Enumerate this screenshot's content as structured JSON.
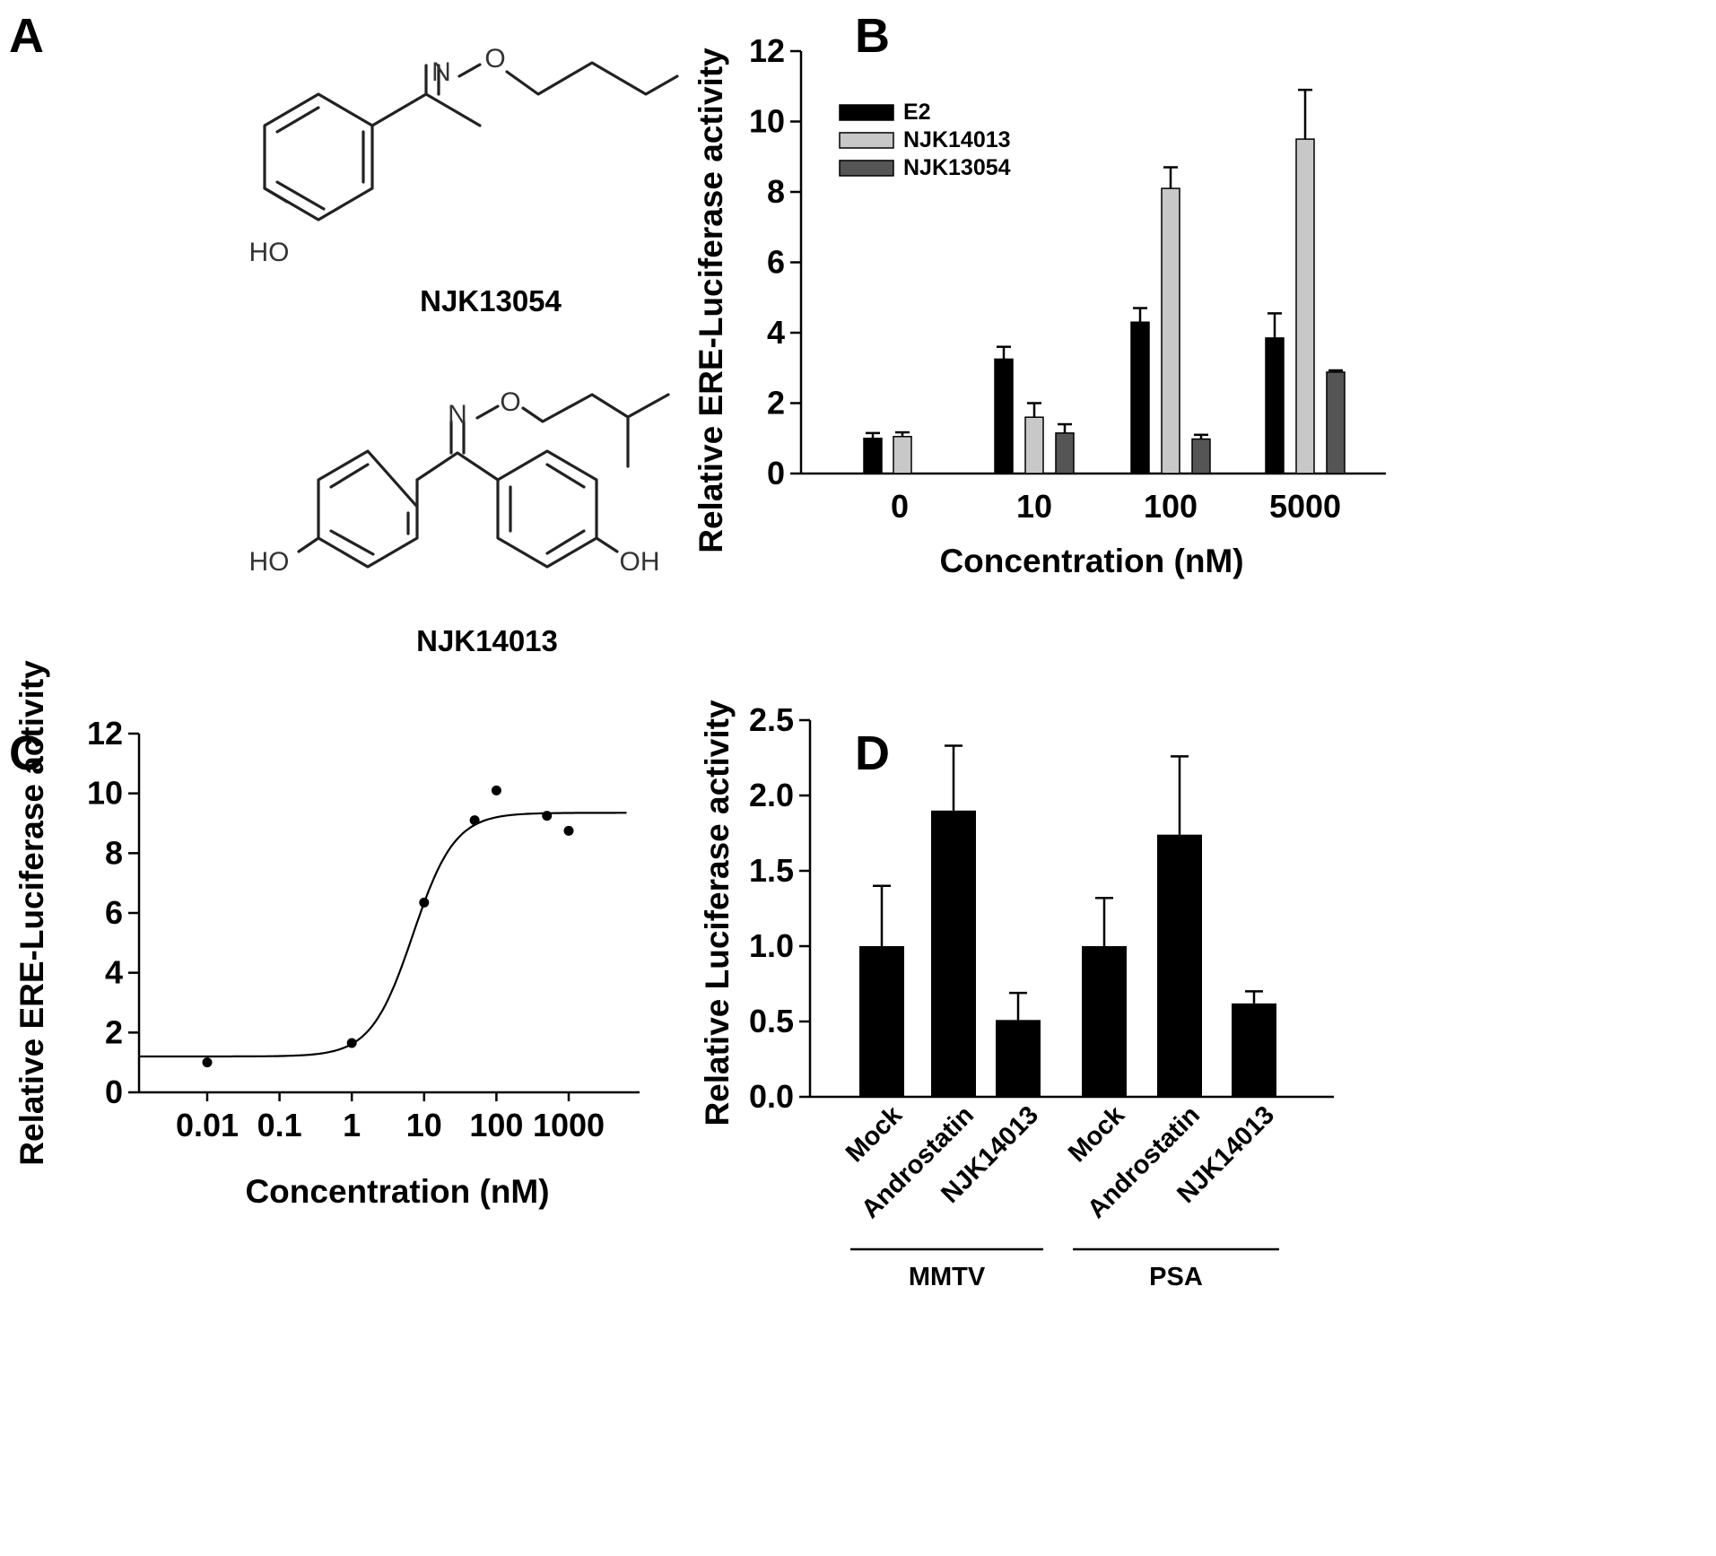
{
  "panels": {
    "A": {
      "label": "A",
      "compound1": {
        "name": "NJK13054",
        "atoms": {
          "n": "N",
          "o": "O",
          "ho": "HO"
        }
      },
      "compound2": {
        "name": "NJK14013",
        "atoms": {
          "n": "N",
          "o": "O",
          "ho_left": "HO",
          "oh_right": "OH"
        }
      }
    },
    "B": {
      "label": "B"
    },
    "C": {
      "label": "C"
    },
    "D": {
      "label": "D"
    }
  },
  "chart_data": [
    {
      "panel": "B",
      "type": "bar",
      "xlabel": "Concentration (nM)",
      "ylabel": "Relative ERE-Luciferase activity",
      "ylim": [
        0,
        12
      ],
      "yticks": [
        "0",
        "2",
        "4",
        "6",
        "8",
        "10",
        "12"
      ],
      "categories": [
        "0",
        "10",
        "100",
        "5000"
      ],
      "legend_position": "top-left",
      "series": [
        {
          "name": "E2",
          "color": "#000000",
          "values": [
            1.0,
            3.25,
            4.3,
            3.85
          ],
          "errors": [
            0.15,
            0.35,
            0.4,
            0.7
          ]
        },
        {
          "name": "NJK14013",
          "color": "#c8c8c8",
          "values": [
            1.05,
            1.6,
            8.1,
            9.5
          ],
          "errors": [
            0.12,
            0.4,
            0.6,
            1.4
          ]
        },
        {
          "name": "NJK13054",
          "color": "#555555",
          "values": [
            null,
            1.15,
            0.98,
            2.88
          ],
          "errors": [
            null,
            0.25,
            0.12,
            0.05
          ]
        }
      ]
    },
    {
      "panel": "C",
      "type": "scatter",
      "xlabel": "Concentration (nM)",
      "ylabel": "Relative ERE-Luciferase activity",
      "xscale": "log",
      "xticks": [
        "0.01",
        "0.1",
        "1",
        "10",
        "100",
        "1000"
      ],
      "ylim": [
        0,
        12
      ],
      "yticks": [
        "0",
        "2",
        "4",
        "6",
        "8",
        "10",
        "12"
      ],
      "points": [
        {
          "x": 0.01,
          "y": 1.0
        },
        {
          "x": 1,
          "y": 1.65
        },
        {
          "x": 10,
          "y": 6.35
        },
        {
          "x": 50,
          "y": 9.1
        },
        {
          "x": 100,
          "y": 10.1
        },
        {
          "x": 500,
          "y": 9.25
        },
        {
          "x": 1000,
          "y": 8.75
        }
      ],
      "fit_curve": {
        "model": "sigmoidal dose-response",
        "bottom": 1.2,
        "top": 9.35,
        "ec50": 7,
        "hill": 1.5
      }
    },
    {
      "panel": "D",
      "type": "bar",
      "ylabel": "Relative Luciferase activity",
      "ylim": [
        0,
        2.5
      ],
      "yticks": [
        "0.0",
        "0.5",
        "1.0",
        "1.5",
        "2.0",
        "2.5"
      ],
      "categories": [
        "Mock",
        "Androstatin",
        "NJK14013",
        "Mock",
        "Androstatin",
        "NJK14013"
      ],
      "groups": [
        {
          "name": "MMTV",
          "members": [
            0,
            1,
            2
          ]
        },
        {
          "name": "PSA",
          "members": [
            3,
            4,
            5
          ]
        }
      ],
      "values": [
        1.0,
        1.9,
        0.51,
        1.0,
        1.74,
        0.62
      ],
      "errors": [
        0.4,
        0.43,
        0.18,
        0.32,
        0.52,
        0.08
      ],
      "color": "#000000"
    }
  ]
}
